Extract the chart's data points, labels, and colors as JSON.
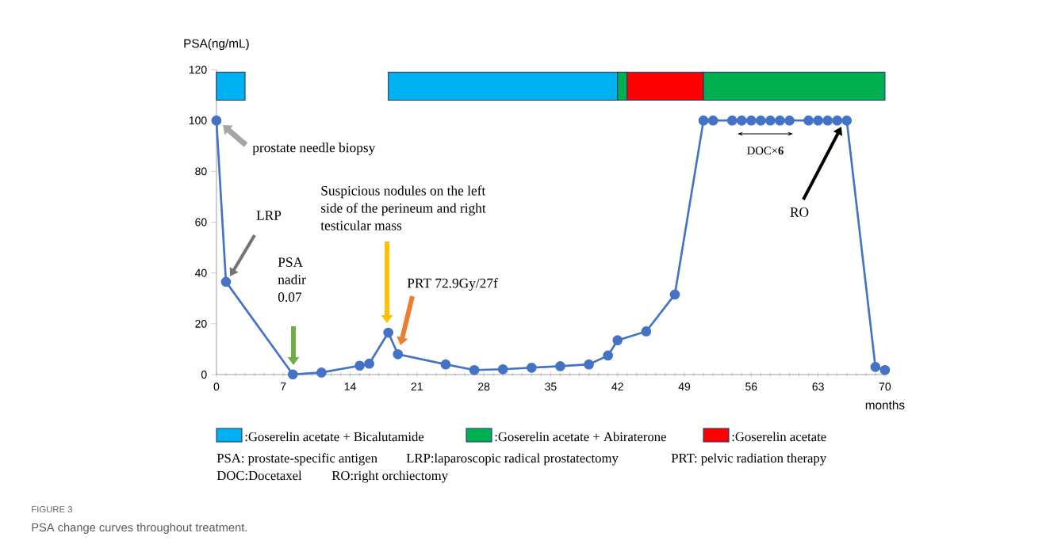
{
  "chart_data": {
    "type": "line",
    "xlabel": "months",
    "ylabel": "PSA(ng/mL)",
    "color": "#4472c4",
    "marker": "circle",
    "line_style": "solid",
    "x": [
      0,
      1,
      8,
      11,
      15,
      16,
      18,
      19,
      24,
      27,
      30,
      33,
      36,
      39,
      41,
      42,
      45,
      48,
      51,
      52,
      54,
      55,
      56,
      57,
      58,
      59,
      60,
      62,
      63,
      64,
      65,
      66,
      69,
      70
    ],
    "values": [
      100,
      36.5,
      0.07,
      0.8,
      3.5,
      4.3,
      16.5,
      8,
      4,
      1.8,
      2.1,
      2.7,
      3.3,
      4,
      7.5,
      13.5,
      17,
      31.5,
      100,
      100,
      100,
      100,
      100,
      100,
      100,
      100,
      100,
      100,
      100,
      100,
      100,
      100,
      3,
      1.8
    ],
    "xlim": [
      0,
      70
    ],
    "ylim": [
      0,
      120
    ],
    "xticks": [
      0,
      7,
      14,
      21,
      28,
      35,
      42,
      49,
      56,
      63,
      70
    ],
    "yticks": [
      0,
      20,
      40,
      60,
      80,
      100,
      120
    ],
    "bands": [
      {
        "axis": "x",
        "from": 0,
        "to": 3,
        "color": "#00b0f0",
        "label": ":Goserelin acetate + Bicalutamide"
      },
      {
        "axis": "x",
        "from": 18,
        "to": 42,
        "color": "#00b0f0"
      },
      {
        "axis": "x",
        "from": 42,
        "to": 43,
        "color": "#00b050",
        "label": ":Goserelin acetate + Abiraterone"
      },
      {
        "axis": "x",
        "from": 43,
        "to": 51,
        "color": "#ff0000",
        "label": ":Goserelin acetate"
      },
      {
        "axis": "x",
        "from": 51,
        "to": 70,
        "color": "#00b050"
      }
    ],
    "legend": "bottom",
    "annotations": [
      "prostate needle biopsy",
      "LRP",
      "PSA nadir 0.07",
      "Suspicious nodules on the left side of the perineum and right testicular mass",
      "PRT 72.9Gy/27f",
      "DOC×**6**",
      "RO",
      "PSA: prostate-specific antigen",
      "LRP:laparoscopic radical prostatectomy",
      "PRT: pelvic radiation therapy",
      "DOC:Docetaxel",
      "RO:right orchiectomy",
      "FIGURE 3",
      "PSA change curves throughout treatment."
    ]
  }
}
